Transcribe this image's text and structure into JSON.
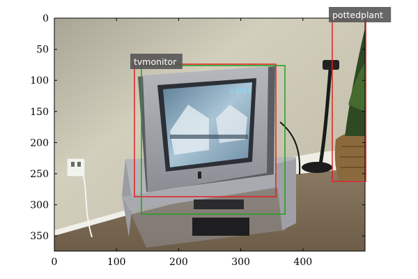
{
  "image": {
    "x_ticks": [
      "0",
      "100",
      "200",
      "300",
      "400"
    ],
    "y_ticks": [
      "0",
      "50",
      "100",
      "150",
      "200",
      "250",
      "300",
      "350"
    ],
    "screen_text": "v.2011"
  },
  "detections": [
    {
      "id": "tv-red",
      "label": "tvmonitor",
      "color": "#e02020"
    },
    {
      "id": "tv-green",
      "label": "tvmonitor",
      "color": "#20a020"
    },
    {
      "id": "plant-red",
      "label": "pottedplant",
      "color": "#e02020"
    }
  ],
  "colors": {
    "wall": "#cfcab6",
    "floor": "#7a6a55",
    "tv_body": "#9a9ca4",
    "stand": "#a7a8ad",
    "screen": "#7ea3bb",
    "label_bg": "#555555",
    "label_text": "#ffffff"
  }
}
